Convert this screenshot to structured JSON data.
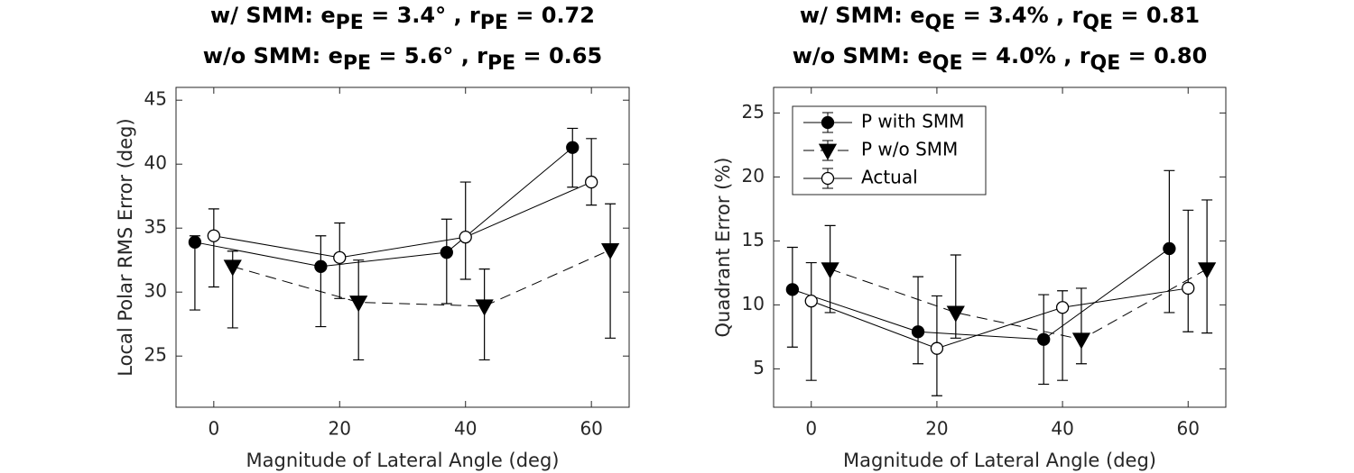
{
  "chart_data": [
    {
      "type": "line",
      "title": [
        [
          "w/ SMM:  e",
          "PE",
          " = 3.4° , r",
          "PE",
          " = 0.72"
        ],
        [
          "w/o SMM: e",
          "PE",
          " = 5.6° , r",
          "PE",
          " = 0.65"
        ]
      ],
      "xlabel": "Magnitude of Lateral Angle (deg)",
      "ylabel": "Local Polar RMS Error (deg)",
      "xlim": [
        -6,
        66
      ],
      "ylim": [
        21,
        46
      ],
      "xticks": [
        0,
        20,
        40,
        60
      ],
      "yticks": [
        25,
        30,
        35,
        40,
        45
      ],
      "series": [
        {
          "color": "#000000",
          "marker": "circle",
          "marker_fill": "#000000",
          "linestyle": "solid",
          "x": [
            -3,
            17,
            37,
            57
          ],
          "values": [
            33.9,
            32.0,
            33.1,
            41.3
          ],
          "lower": [
            28.6,
            27.3,
            29.1,
            38.2
          ],
          "upper": [
            34.4,
            34.4,
            35.7,
            42.8
          ]
        },
        {
          "color": "#000000",
          "marker": "triangle-down",
          "marker_fill": "#000000",
          "linestyle": "dashed",
          "x": [
            3,
            23,
            43,
            63
          ],
          "values": [
            32.0,
            29.2,
            28.9,
            33.3
          ],
          "lower": [
            27.2,
            24.7,
            24.7,
            26.4
          ],
          "upper": [
            33.2,
            32.5,
            31.8,
            36.9
          ]
        },
        {
          "color": "#000000",
          "marker": "circle",
          "marker_fill": "#ffffff",
          "linestyle": "solid",
          "x": [
            0,
            20,
            40,
            60
          ],
          "values": [
            34.4,
            32.7,
            34.3,
            38.6
          ],
          "lower": [
            30.4,
            29.5,
            31.0,
            36.8
          ],
          "upper": [
            36.5,
            35.4,
            38.6,
            42.0
          ]
        }
      ]
    },
    {
      "type": "line",
      "title": [
        [
          "w/ SMM:  e",
          "QE",
          " = 3.4% , r",
          "QE",
          " = 0.81"
        ],
        [
          "w/o SMM: e",
          "QE",
          " = 4.0% , r",
          "QE",
          " = 0.80"
        ]
      ],
      "xlabel": "Magnitude of Lateral Angle (deg)",
      "ylabel": "Quadrant Error (%)",
      "xlim": [
        -6,
        66
      ],
      "ylim": [
        2,
        27
      ],
      "xticks": [
        0,
        20,
        40,
        60
      ],
      "yticks": [
        5,
        10,
        15,
        20,
        25
      ],
      "legend": "upper left",
      "series": [
        {
          "name": "P with SMM",
          "color": "#000000",
          "marker": "circle",
          "marker_fill": "#000000",
          "linestyle": "solid",
          "x": [
            -3,
            17,
            37,
            57
          ],
          "values": [
            11.2,
            7.9,
            7.3,
            14.4
          ],
          "lower": [
            6.7,
            5.4,
            3.8,
            9.4
          ],
          "upper": [
            14.5,
            12.2,
            10.8,
            20.5
          ]
        },
        {
          "name": "P w/o SMM",
          "color": "#000000",
          "marker": "triangle-down",
          "marker_fill": "#000000",
          "linestyle": "dashed",
          "x": [
            3,
            23,
            43,
            63
          ],
          "values": [
            12.8,
            9.4,
            7.3,
            12.8
          ],
          "lower": [
            9.4,
            7.4,
            5.4,
            7.8
          ],
          "upper": [
            16.2,
            13.9,
            11.3,
            18.2
          ]
        },
        {
          "name": "Actual",
          "color": "#000000",
          "marker": "circle",
          "marker_fill": "#ffffff",
          "linestyle": "solid",
          "x": [
            0,
            20,
            40,
            60
          ],
          "values": [
            10.3,
            6.6,
            9.8,
            11.3
          ],
          "lower": [
            4.1,
            2.9,
            4.1,
            7.9
          ],
          "upper": [
            13.3,
            10.7,
            11.1,
            17.4
          ]
        }
      ]
    }
  ]
}
